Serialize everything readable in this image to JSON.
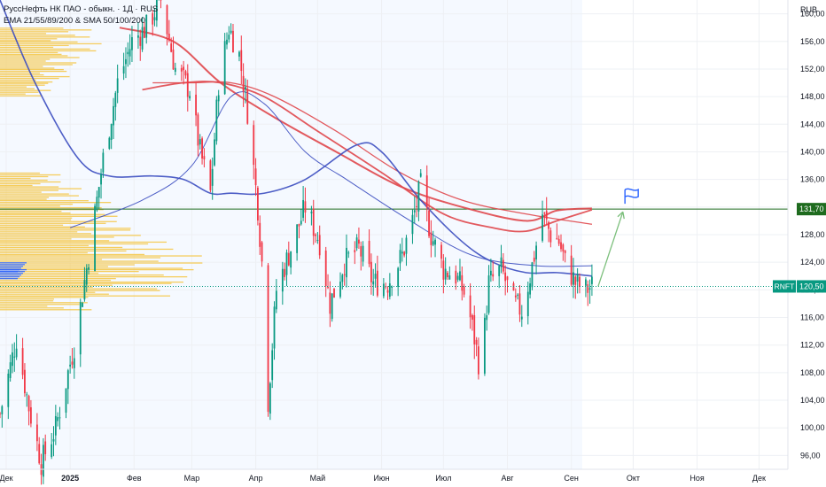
{
  "header": {
    "title": "РуссНефть НК ПАО - обыкн. · 1Д · RUS",
    "indicators": "EMA 21/55/89/200 & SMA 50/100/200"
  },
  "currency": "RUB",
  "chart_data": {
    "type": "candlestick",
    "ylim": [
      94,
      162
    ],
    "y_ticks": [
      96,
      100,
      104,
      108,
      112,
      116,
      120,
      124,
      128,
      132,
      136,
      140,
      144,
      148,
      152,
      156,
      160
    ],
    "y_tick_labels": [
      "96,00",
      "100,00",
      "104,00",
      "108,00",
      "112,00",
      "116,00",
      "120,00",
      "124,00",
      "128,00",
      "132,00",
      "136,00",
      "140,00",
      "144,00",
      "148,00",
      "152,00",
      "156,00",
      "160,00"
    ],
    "x_range": [
      "2024-11-28",
      "2025-12-15"
    ],
    "x_ticks": [
      {
        "label": "Дек",
        "date": "2024-12-01"
      },
      {
        "label": "2025",
        "date": "2025-01-01"
      },
      {
        "label": "Фев",
        "date": "2025-02-01"
      },
      {
        "label": "Мар",
        "date": "2025-03-01"
      },
      {
        "label": "Апр",
        "date": "2025-04-01"
      },
      {
        "label": "Май",
        "date": "2025-05-01"
      },
      {
        "label": "Июн",
        "date": "2025-06-01"
      },
      {
        "label": "Июл",
        "date": "2025-07-01"
      },
      {
        "label": "Авг",
        "date": "2025-08-01"
      },
      {
        "label": "Сен",
        "date": "2025-09-01"
      },
      {
        "label": "Окт",
        "date": "2025-10-01"
      },
      {
        "label": "Ноя",
        "date": "2025-11-01"
      },
      {
        "label": "Дек",
        "date": "2025-12-01"
      }
    ],
    "price_path": [
      [
        "2024-11-28",
        102
      ],
      [
        "2024-12-06",
        113
      ],
      [
        "2024-12-12",
        103
      ],
      [
        "2024-12-18",
        95
      ],
      [
        "2024-12-25",
        100
      ],
      [
        "2025-01-03",
        112
      ],
      [
        "2025-01-10",
        125
      ],
      [
        "2025-01-17",
        139
      ],
      [
        "2025-01-24",
        150
      ],
      [
        "2025-01-31",
        156
      ],
      [
        "2025-02-07",
        158
      ],
      [
        "2025-02-14",
        162
      ],
      [
        "2025-02-21",
        152
      ],
      [
        "2025-02-28",
        149
      ],
      [
        "2025-03-05",
        140
      ],
      [
        "2025-03-10",
        134
      ],
      [
        "2025-03-14",
        150
      ],
      [
        "2025-03-19",
        158
      ],
      [
        "2025-03-24",
        154
      ],
      [
        "2025-03-28",
        146
      ],
      [
        "2025-04-02",
        132
      ],
      [
        "2025-04-05",
        120
      ],
      [
        "2025-04-07",
        104
      ],
      [
        "2025-04-11",
        120
      ],
      [
        "2025-04-18",
        126
      ],
      [
        "2025-04-25",
        132
      ],
      [
        "2025-05-02",
        127
      ],
      [
        "2025-05-07",
        118
      ],
      [
        "2025-05-14",
        124
      ],
      [
        "2025-05-21",
        126
      ],
      [
        "2025-05-28",
        121
      ],
      [
        "2025-06-04",
        121
      ],
      [
        "2025-06-11",
        125
      ],
      [
        "2025-06-16",
        130
      ],
      [
        "2025-06-20",
        135
      ],
      [
        "2025-06-25",
        128
      ],
      [
        "2025-07-01",
        123
      ],
      [
        "2025-07-07",
        122
      ],
      [
        "2025-07-12",
        119
      ],
      [
        "2025-07-16",
        113
      ],
      [
        "2025-07-19",
        108
      ],
      [
        "2025-07-23",
        121
      ],
      [
        "2025-07-29",
        123
      ],
      [
        "2025-08-04",
        118
      ],
      [
        "2025-08-08",
        117
      ],
      [
        "2025-08-12",
        122
      ],
      [
        "2025-08-18",
        131
      ],
      [
        "2025-08-22",
        128
      ],
      [
        "2025-08-26",
        127
      ],
      [
        "2025-08-29",
        124
      ],
      [
        "2025-09-03",
        121
      ],
      [
        "2025-09-08",
        120
      ],
      [
        "2025-09-11",
        120.5
      ]
    ],
    "ema_lines": [
      {
        "color": "#e0474c",
        "width": 2.0,
        "points": [
          [
            "2025-01-25",
            158
          ],
          [
            "2025-02-20",
            156
          ],
          [
            "2025-03-15",
            150
          ],
          [
            "2025-04-10",
            145
          ],
          [
            "2025-05-10",
            140
          ],
          [
            "2025-06-10",
            135
          ],
          [
            "2025-07-10",
            132
          ],
          [
            "2025-08-10",
            130
          ],
          [
            "2025-08-25",
            131.5
          ],
          [
            "2025-09-11",
            131.8
          ]
        ]
      },
      {
        "color": "#e0474c",
        "width": 1.3,
        "points": [
          [
            "2025-02-10",
            150
          ],
          [
            "2025-03-01",
            150
          ],
          [
            "2025-03-20",
            150
          ],
          [
            "2025-04-10",
            148
          ],
          [
            "2025-05-10",
            143
          ],
          [
            "2025-06-10",
            137
          ],
          [
            "2025-07-10",
            133
          ],
          [
            "2025-08-10",
            131
          ],
          [
            "2025-09-11",
            129.5
          ]
        ]
      },
      {
        "color": "#e0474c",
        "width": 1.8,
        "points": [
          [
            "2025-02-05",
            149
          ],
          [
            "2025-02-25",
            150
          ],
          [
            "2025-03-15",
            150
          ],
          [
            "2025-04-05",
            148
          ],
          [
            "2025-05-01",
            143
          ],
          [
            "2025-06-01",
            137
          ],
          [
            "2025-07-01",
            131
          ],
          [
            "2025-07-25",
            129
          ],
          [
            "2025-08-10",
            128.5
          ],
          [
            "2025-08-25",
            130
          ],
          [
            "2025-09-11",
            131.6
          ]
        ]
      },
      {
        "color": "#3b4cc0",
        "width": 1.6,
        "points": [
          [
            "2024-11-28",
            162
          ],
          [
            "2024-12-15",
            150
          ],
          [
            "2025-01-05",
            139
          ],
          [
            "2025-01-20",
            136.5
          ],
          [
            "2025-02-10",
            136.5
          ],
          [
            "2025-02-25",
            136
          ],
          [
            "2025-03-10",
            134
          ],
          [
            "2025-03-20",
            134
          ],
          [
            "2025-04-05",
            134
          ],
          [
            "2025-04-25",
            136
          ],
          [
            "2025-05-20",
            141
          ],
          [
            "2025-06-01",
            140
          ],
          [
            "2025-06-20",
            133
          ],
          [
            "2025-07-10",
            127
          ],
          [
            "2025-07-25",
            124
          ],
          [
            "2025-08-10",
            122.5
          ],
          [
            "2025-08-25",
            122.5
          ],
          [
            "2025-09-11",
            122
          ]
        ]
      },
      {
        "color": "#3b4cc0",
        "width": 1.0,
        "points": [
          [
            "2025-01-01",
            129
          ],
          [
            "2025-02-05",
            133
          ],
          [
            "2025-03-01",
            138
          ],
          [
            "2025-03-20",
            148
          ],
          [
            "2025-04-05",
            147
          ],
          [
            "2025-04-25",
            140
          ],
          [
            "2025-05-15",
            136
          ],
          [
            "2025-06-15",
            130
          ],
          [
            "2025-07-15",
            125
          ],
          [
            "2025-08-15",
            123.5
          ],
          [
            "2025-09-11",
            123.5
          ]
        ]
      }
    ],
    "horizontal_level": {
      "value": 131.7,
      "label": "131,70",
      "color": "#1e6b1e"
    },
    "last_price": {
      "value": 120.5,
      "label": "120,50",
      "ticker": "RNFT",
      "color": "#089981"
    },
    "arrow": {
      "from": [
        "2025-09-14",
        120.5
      ],
      "to": [
        "2025-09-26",
        131.3
      ],
      "color": "#7cbf7c"
    },
    "flag": {
      "date": "2025-09-27",
      "value": 133.5,
      "color": "#2962ff"
    },
    "volume_profile": [
      {
        "value": 157,
        "width": 0.45
      },
      {
        "value": 155,
        "width": 0.5
      },
      {
        "value": 153,
        "width": 0.4
      },
      {
        "value": 151,
        "width": 0.35
      },
      {
        "value": 149,
        "width": 0.25
      },
      {
        "value": 136,
        "width": 0.3
      },
      {
        "value": 134,
        "width": 0.4
      },
      {
        "value": 132,
        "width": 0.55
      },
      {
        "value": 130,
        "width": 0.6
      },
      {
        "value": 128,
        "width": 0.7
      },
      {
        "value": 126,
        "width": 0.85
      },
      {
        "value": 124,
        "width": 1.0
      },
      {
        "value": 122,
        "width": 0.95
      },
      {
        "value": 120,
        "width": 0.85
      },
      {
        "value": 118,
        "width": 0.45
      }
    ]
  }
}
